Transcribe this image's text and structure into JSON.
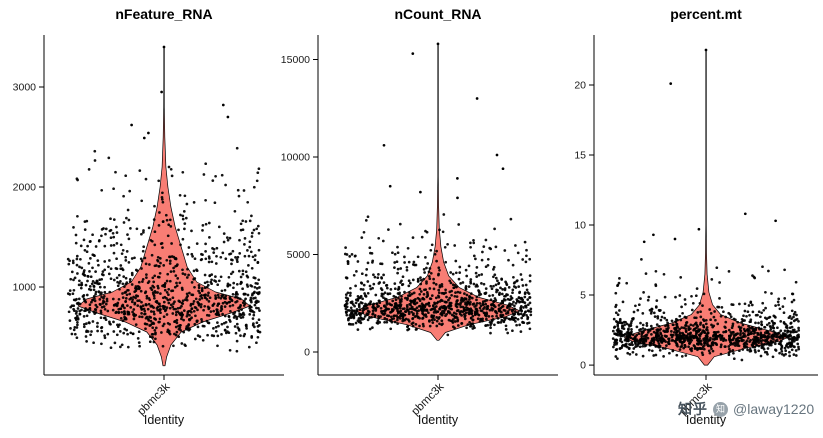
{
  "watermark": {
    "brand": "知乎",
    "logo_char": "知",
    "handle": "@laway1220"
  },
  "chart_data": {
    "type": "violin",
    "xlabel": "Identity",
    "x_category": "pbmc3k",
    "n_groups": 1,
    "style": {
      "violin_fill": "#F8766D",
      "violin_stroke": "#000000",
      "point_color": "#000000",
      "point_radius": 1.35,
      "axis_color": "#000000",
      "tick_label_color": "#1a1a1a",
      "background": "#FFFFFF",
      "grid": false,
      "legend": "none"
    },
    "panels": [
      {
        "title": "nFeature_RNA",
        "ylim": [
          120,
          3520
        ],
        "yticks": [
          1000,
          2000,
          3000
        ],
        "ytick_labels": [
          "1000",
          "2000",
          "3000"
        ],
        "summary": {
          "peak": 820,
          "dense_range": [
            400,
            1100
          ],
          "spread_range": [
            212,
            2500
          ],
          "max_outlier": 3400
        },
        "violin_density": [
          [
            212,
            0.012
          ],
          [
            300,
            0.03
          ],
          [
            420,
            0.08
          ],
          [
            550,
            0.2
          ],
          [
            650,
            0.45
          ],
          [
            740,
            0.78
          ],
          [
            810,
            1.0
          ],
          [
            880,
            0.9
          ],
          [
            950,
            0.6
          ],
          [
            1050,
            0.38
          ],
          [
            1200,
            0.27
          ],
          [
            1400,
            0.2
          ],
          [
            1600,
            0.13
          ],
          [
            1800,
            0.08
          ],
          [
            2000,
            0.045
          ],
          [
            2200,
            0.022
          ],
          [
            2500,
            0.009
          ],
          [
            2800,
            0.004
          ],
          [
            3100,
            0.0025
          ],
          [
            3400,
            0.002
          ]
        ],
        "jitter": {
          "seed": 11,
          "groups": [
            {
              "count": 640,
              "mean": 780,
              "sd": 170,
              "min": 310,
              "max": 1300
            },
            {
              "count": 430,
              "mean": 1150,
              "sd": 330,
              "min": 350,
              "max": 2150
            },
            {
              "count": 60,
              "mean": 1900,
              "sd": 260,
              "min": 1450,
              "max": 2480
            }
          ],
          "outliers": [
            3400,
            2950,
            2820,
            2700,
            2620,
            2540,
            2490
          ]
        }
      },
      {
        "title": "nCount_RNA",
        "ylim": [
          -1180,
          16256
        ],
        "yticks": [
          0,
          5000,
          10000,
          15000
        ],
        "ytick_labels": [
          "0",
          "5000",
          "10000",
          "15000"
        ],
        "summary": {
          "peak": 2100,
          "dense_range": [
            900,
            3500
          ],
          "spread_range": [
            600,
            7500
          ],
          "max_outlier": 15800
        },
        "violin_density": [
          [
            600,
            0.012
          ],
          [
            1000,
            0.09
          ],
          [
            1400,
            0.38
          ],
          [
            1800,
            0.82
          ],
          [
            2100,
            1.0
          ],
          [
            2400,
            0.85
          ],
          [
            2800,
            0.5
          ],
          [
            3300,
            0.26
          ],
          [
            3900,
            0.13
          ],
          [
            4600,
            0.07
          ],
          [
            5400,
            0.035
          ],
          [
            6300,
            0.016
          ],
          [
            7500,
            0.007
          ],
          [
            9000,
            0.003
          ],
          [
            12000,
            0.002
          ],
          [
            15800,
            0.0015
          ]
        ],
        "jitter": {
          "seed": 22,
          "groups": [
            {
              "count": 640,
              "mean": 2150,
              "sd": 430,
              "min": 700,
              "max": 3600
            },
            {
              "count": 400,
              "mean": 3000,
              "sd": 950,
              "min": 900,
              "max": 6300
            },
            {
              "count": 55,
              "mean": 5300,
              "sd": 900,
              "min": 4200,
              "max": 7600
            }
          ],
          "outliers": [
            15800,
            15300,
            13000,
            10600,
            10100,
            9400,
            8900,
            8500,
            8200,
            7900
          ]
        }
      },
      {
        "title": "percent.mt",
        "ylim": [
          -0.71,
          23.57
        ],
        "yticks": [
          0,
          5,
          10,
          15,
          20
        ],
        "ytick_labels": [
          "0",
          "5",
          "10",
          "15",
          "20"
        ],
        "summary": {
          "peak": 2.0,
          "dense_range": [
            0.5,
            3.5
          ],
          "spread_range": [
            0,
            9.5
          ],
          "max_outlier": 22.5
        },
        "violin_density": [
          [
            0,
            0.02
          ],
          [
            0.6,
            0.1
          ],
          [
            1.2,
            0.48
          ],
          [
            1.7,
            0.9
          ],
          [
            2.0,
            1.0
          ],
          [
            2.4,
            0.8
          ],
          [
            3.0,
            0.42
          ],
          [
            3.6,
            0.18
          ],
          [
            4.3,
            0.08
          ],
          [
            5.2,
            0.035
          ],
          [
            6.5,
            0.013
          ],
          [
            8.0,
            0.006
          ],
          [
            10,
            0.003
          ],
          [
            16,
            0.002
          ],
          [
            22.5,
            0.0015
          ]
        ],
        "jitter": {
          "seed": 33,
          "groups": [
            {
              "count": 680,
              "mean": 1.9,
              "sd": 0.55,
              "min": 0.25,
              "max": 3.6
            },
            {
              "count": 360,
              "mean": 2.6,
              "sd": 1.0,
              "min": 0.4,
              "max": 5.3
            },
            {
              "count": 60,
              "mean": 4.8,
              "sd": 1.3,
              "min": 3.4,
              "max": 8.8
            }
          ],
          "outliers": [
            22.5,
            20.1,
            10.8,
            10.3,
            9.7,
            9.3,
            9.0,
            8.8
          ]
        }
      }
    ]
  }
}
